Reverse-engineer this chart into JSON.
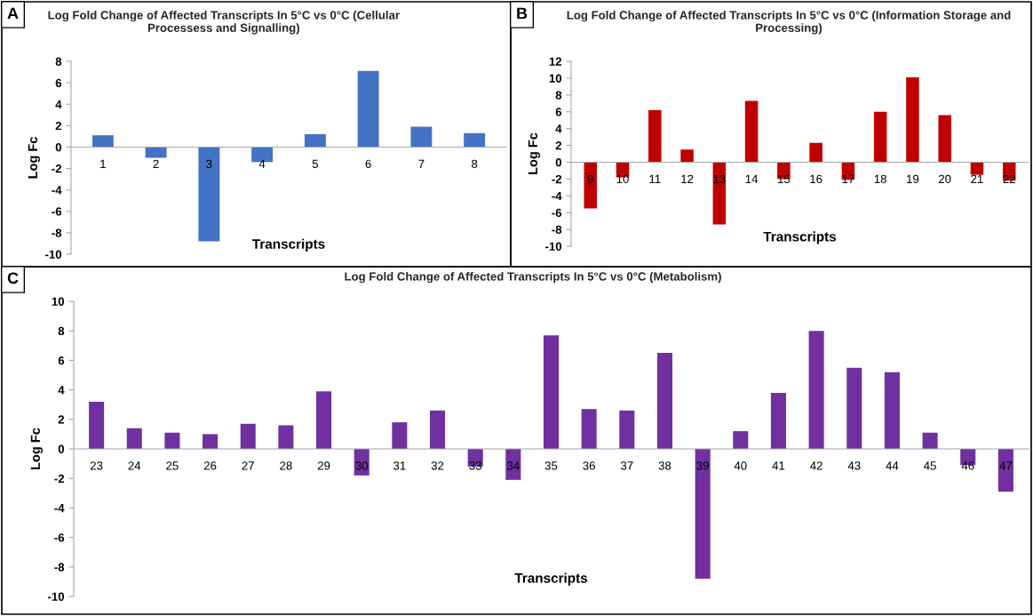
{
  "chart_data": [
    {
      "type": "bar",
      "title": "Log Fold Change of Affected Transcripts In 5°C vs 0°C (Cellular Processess and Signalling)",
      "xlabel": "Transcripts",
      "ylabel": "Log Fc",
      "annotations": [
        "A"
      ],
      "color": "#4472c4",
      "categories": [
        "1",
        "2",
        "3",
        "4",
        "5",
        "6",
        "7",
        "8"
      ],
      "values": [
        1.1,
        -1.0,
        -8.8,
        -1.4,
        1.2,
        7.1,
        1.9,
        1.3
      ],
      "ylim": [
        -10,
        8
      ],
      "yticks": [
        -10,
        -8,
        -6,
        -4,
        -2,
        0,
        2,
        4,
        6,
        8
      ]
    },
    {
      "type": "bar",
      "title": "Log Fold Change of Affected Transcripts In 5°C vs 0°C (Information Storage and Processing)",
      "xlabel": "Transcripts",
      "ylabel": "Log Fc",
      "annotations": [
        "B"
      ],
      "color": "#c00000",
      "categories": [
        "9",
        "10",
        "11",
        "12",
        "13",
        "14",
        "15",
        "16",
        "17",
        "18",
        "19",
        "20",
        "21",
        "22"
      ],
      "values": [
        -5.5,
        -1.8,
        6.2,
        1.5,
        -7.4,
        7.3,
        -2.0,
        2.3,
        -2.1,
        6.0,
        10.1,
        5.6,
        -1.5,
        -2.2
      ],
      "ylim": [
        -10,
        12
      ],
      "yticks": [
        -10,
        -8,
        -6,
        -4,
        -2,
        0,
        2,
        4,
        6,
        8,
        10,
        12
      ]
    },
    {
      "type": "bar",
      "title": "Log Fold Change of Affected Transcripts In 5°C vs 0°C (Metabolism)",
      "xlabel": "Transcripts",
      "ylabel": "Log Fc",
      "annotations": [
        "C"
      ],
      "color": "#7030a0",
      "categories": [
        "23",
        "24",
        "25",
        "26",
        "27",
        "28",
        "29",
        "30",
        "31",
        "32",
        "33",
        "34",
        "35",
        "36",
        "37",
        "38",
        "39",
        "40",
        "41",
        "42",
        "43",
        "44",
        "45",
        "46",
        "47"
      ],
      "values": [
        3.2,
        1.4,
        1.1,
        1.0,
        1.7,
        1.6,
        3.9,
        -1.8,
        1.8,
        2.6,
        -1.2,
        -2.1,
        7.7,
        2.7,
        2.6,
        6.5,
        -8.8,
        1.2,
        3.8,
        8.0,
        5.5,
        5.2,
        1.1,
        -1.1,
        -2.9
      ],
      "ylim": [
        -10,
        10
      ],
      "yticks": [
        -10,
        -8,
        -6,
        -4,
        -2,
        0,
        2,
        4,
        6,
        8,
        10
      ]
    }
  ]
}
